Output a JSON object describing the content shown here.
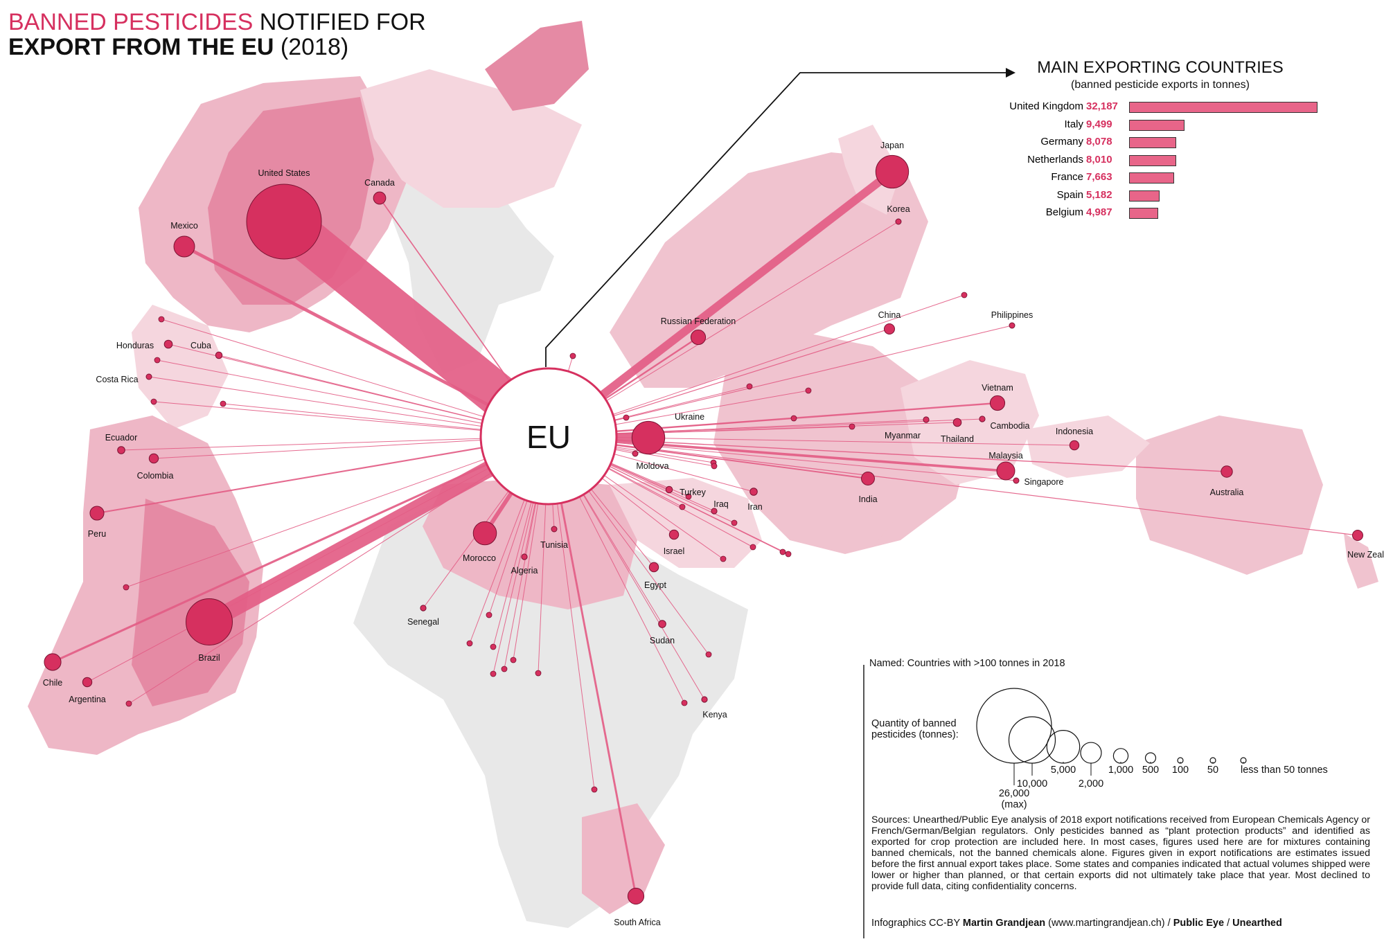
{
  "title": {
    "line1_highlight": "BANNED PESTICIDES",
    "line1_rest": " NOTIFIED FOR",
    "line2_bold": "EXPORT FROM THE EU",
    "line2_rest": " (2018)"
  },
  "hub_label": "EU",
  "colors": {
    "accent": "#d6305f",
    "flow": "#e35d85",
    "land_light": "#f5d6de",
    "land_mid": "#eeb7c6",
    "land_dark": "#e58aa4",
    "land_grey": "#e8e8e8"
  },
  "main_exporters": {
    "title": "MAIN EXPORTING COUNTRIES",
    "subtitle": "(banned pesticide exports in tonnes)",
    "items": [
      {
        "name": "United Kingdom",
        "value_label": "32,187",
        "value": 32187
      },
      {
        "name": "Italy",
        "value_label": "9,499",
        "value": 9499
      },
      {
        "name": "Germany",
        "value_label": "8,078",
        "value": 8078
      },
      {
        "name": "Netherlands",
        "value_label": "8,010",
        "value": 8010
      },
      {
        "name": "France",
        "value_label": "7,663",
        "value": 7663
      },
      {
        "name": "Spain",
        "value_label": "5,182",
        "value": 5182
      },
      {
        "name": "Belgium",
        "value_label": "4,987",
        "value": 4987
      }
    ]
  },
  "destinations": [
    {
      "name": "United States",
      "tonnes": 26000
    },
    {
      "name": "Brazil",
      "tonnes": 10000
    },
    {
      "name": "Japan",
      "tonnes": 5000
    },
    {
      "name": "Ukraine",
      "tonnes": 5000
    },
    {
      "name": "Morocco",
      "tonnes": 2500
    },
    {
      "name": "Mexico",
      "tonnes": 2000
    },
    {
      "name": "Malaysia",
      "tonnes": 1500
    },
    {
      "name": "Vietnam",
      "tonnes": 1000
    },
    {
      "name": "Chile",
      "tonnes": 1300
    },
    {
      "name": "Russian Federation",
      "tonnes": 1000
    },
    {
      "name": "South Africa",
      "tonnes": 1200
    },
    {
      "name": "Canada",
      "tonnes": 700
    },
    {
      "name": "India",
      "tonnes": 800
    },
    {
      "name": "Peru",
      "tonnes": 900
    },
    {
      "name": "Australia",
      "tonnes": 600
    },
    {
      "name": "New Zealand",
      "tonnes": 500
    },
    {
      "name": "China",
      "tonnes": 500
    },
    {
      "name": "Indonesia",
      "tonnes": 400
    },
    {
      "name": "Egypt",
      "tonnes": 400
    },
    {
      "name": "Israel",
      "tonnes": 400
    },
    {
      "name": "Argentina",
      "tonnes": 400
    },
    {
      "name": "Colombia",
      "tonnes": 400
    },
    {
      "name": "Thailand",
      "tonnes": 300
    },
    {
      "name": "Honduras",
      "tonnes": 300
    },
    {
      "name": "Iran",
      "tonnes": 250
    },
    {
      "name": "Sudan",
      "tonnes": 250
    },
    {
      "name": "Ecuador",
      "tonnes": 250
    },
    {
      "name": "Turkey",
      "tonnes": 200
    },
    {
      "name": "Cuba",
      "tonnes": 200
    },
    {
      "name": "Algeria",
      "tonnes": 150
    },
    {
      "name": "Senegal",
      "tonnes": 150
    },
    {
      "name": "Kenya",
      "tonnes": 150
    },
    {
      "name": "Iraq",
      "tonnes": 150
    },
    {
      "name": "Myanmar",
      "tonnes": 150
    },
    {
      "name": "Cambodia",
      "tonnes": 150
    },
    {
      "name": "Moldova",
      "tonnes": 120
    },
    {
      "name": "Tunisia",
      "tonnes": 120
    },
    {
      "name": "Singapore",
      "tonnes": 120
    },
    {
      "name": "Philippines",
      "tonnes": 110
    },
    {
      "name": "Korea",
      "tonnes": 110
    },
    {
      "name": "Costa Rica",
      "tonnes": 110
    }
  ],
  "legend": {
    "named_note": "Named: Countries with >100 tonnes in 2018",
    "quantity_label_1": "Quantity of banned",
    "quantity_label_2": "pesticides (tonnes):",
    "sizes": [
      {
        "label": "26,000",
        "label2": "(max)",
        "value": 26000
      },
      {
        "label": "10,000",
        "value": 10000
      },
      {
        "label": "5,000",
        "value": 5000
      },
      {
        "label": "2,000",
        "value": 2000
      },
      {
        "label": "1,000",
        "value": 1000
      },
      {
        "label": "500",
        "value": 500
      },
      {
        "label": "100",
        "value": 100
      },
      {
        "label": "50",
        "value": 50
      },
      {
        "label": "less than 50 tonnes",
        "value": 20
      }
    ]
  },
  "sources": "Sources: Unearthed/Public Eye analysis of 2018 export notifications received from European Chemicals Agency or French/German/Belgian regulators. Only pesticides banned as “plant protection products” and identified as exported for crop protection are included here. In most cases, figures used here are for mixtures containing banned chemicals, not the banned chemicals alone. Figures given in export notifications are estimates issued before the first annual export takes place. Some states and companies indicated that actual volumes shipped were lower or higher than planned, or that certain exports did not ultimately take place that year. Most declined to provide full data, citing confidentiality concerns.",
  "credit": {
    "prefix": "Infographics CC-BY ",
    "author": "Martin Grandjean",
    "site": " (www.martingrandjean.ch) / ",
    "org1": "Public Eye",
    "sep": " / ",
    "org2": "Unearthed"
  }
}
